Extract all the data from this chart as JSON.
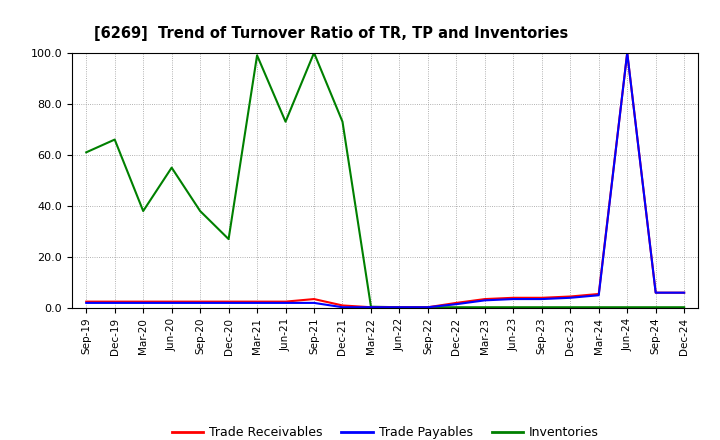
{
  "title": "[6269]  Trend of Turnover Ratio of TR, TP and Inventories",
  "ylim": [
    0.0,
    100.0
  ],
  "yticks": [
    0.0,
    20.0,
    40.0,
    60.0,
    80.0,
    100.0
  ],
  "legend_labels": [
    "Trade Receivables",
    "Trade Payables",
    "Inventories"
  ],
  "legend_colors": [
    "#ff0000",
    "#0000ff",
    "#008000"
  ],
  "background_color": "#ffffff",
  "plot_bg_color": "#ffffff",
  "grid_color": "#999999",
  "x_labels": [
    "Sep-19",
    "Dec-19",
    "Mar-20",
    "Jun-20",
    "Sep-20",
    "Dec-20",
    "Mar-21",
    "Jun-21",
    "Sep-21",
    "Dec-21",
    "Mar-22",
    "Jun-22",
    "Sep-22",
    "Dec-22",
    "Mar-23",
    "Jun-23",
    "Sep-23",
    "Dec-23",
    "Mar-24",
    "Jun-24",
    "Sep-24",
    "Dec-24"
  ],
  "trade_receivables": [
    2.5,
    2.5,
    2.5,
    2.5,
    2.5,
    2.5,
    2.5,
    2.5,
    3.5,
    1.0,
    0.3,
    0.3,
    0.3,
    2.0,
    3.5,
    4.0,
    4.0,
    4.5,
    5.5,
    100.0,
    6.0,
    6.0
  ],
  "trade_payables": [
    2.0,
    2.0,
    2.0,
    2.0,
    2.0,
    2.0,
    2.0,
    2.0,
    2.0,
    0.3,
    0.3,
    0.3,
    0.3,
    1.5,
    3.0,
    3.5,
    3.5,
    4.0,
    5.0,
    100.0,
    6.0,
    6.0
  ],
  "inventories": [
    61.0,
    66.0,
    38.0,
    55.0,
    38.0,
    27.0,
    99.0,
    73.0,
    100.0,
    73.0,
    0.5,
    0.3,
    0.3,
    0.3,
    0.3,
    0.3,
    0.3,
    0.3,
    0.3,
    0.3,
    0.3,
    0.3
  ]
}
